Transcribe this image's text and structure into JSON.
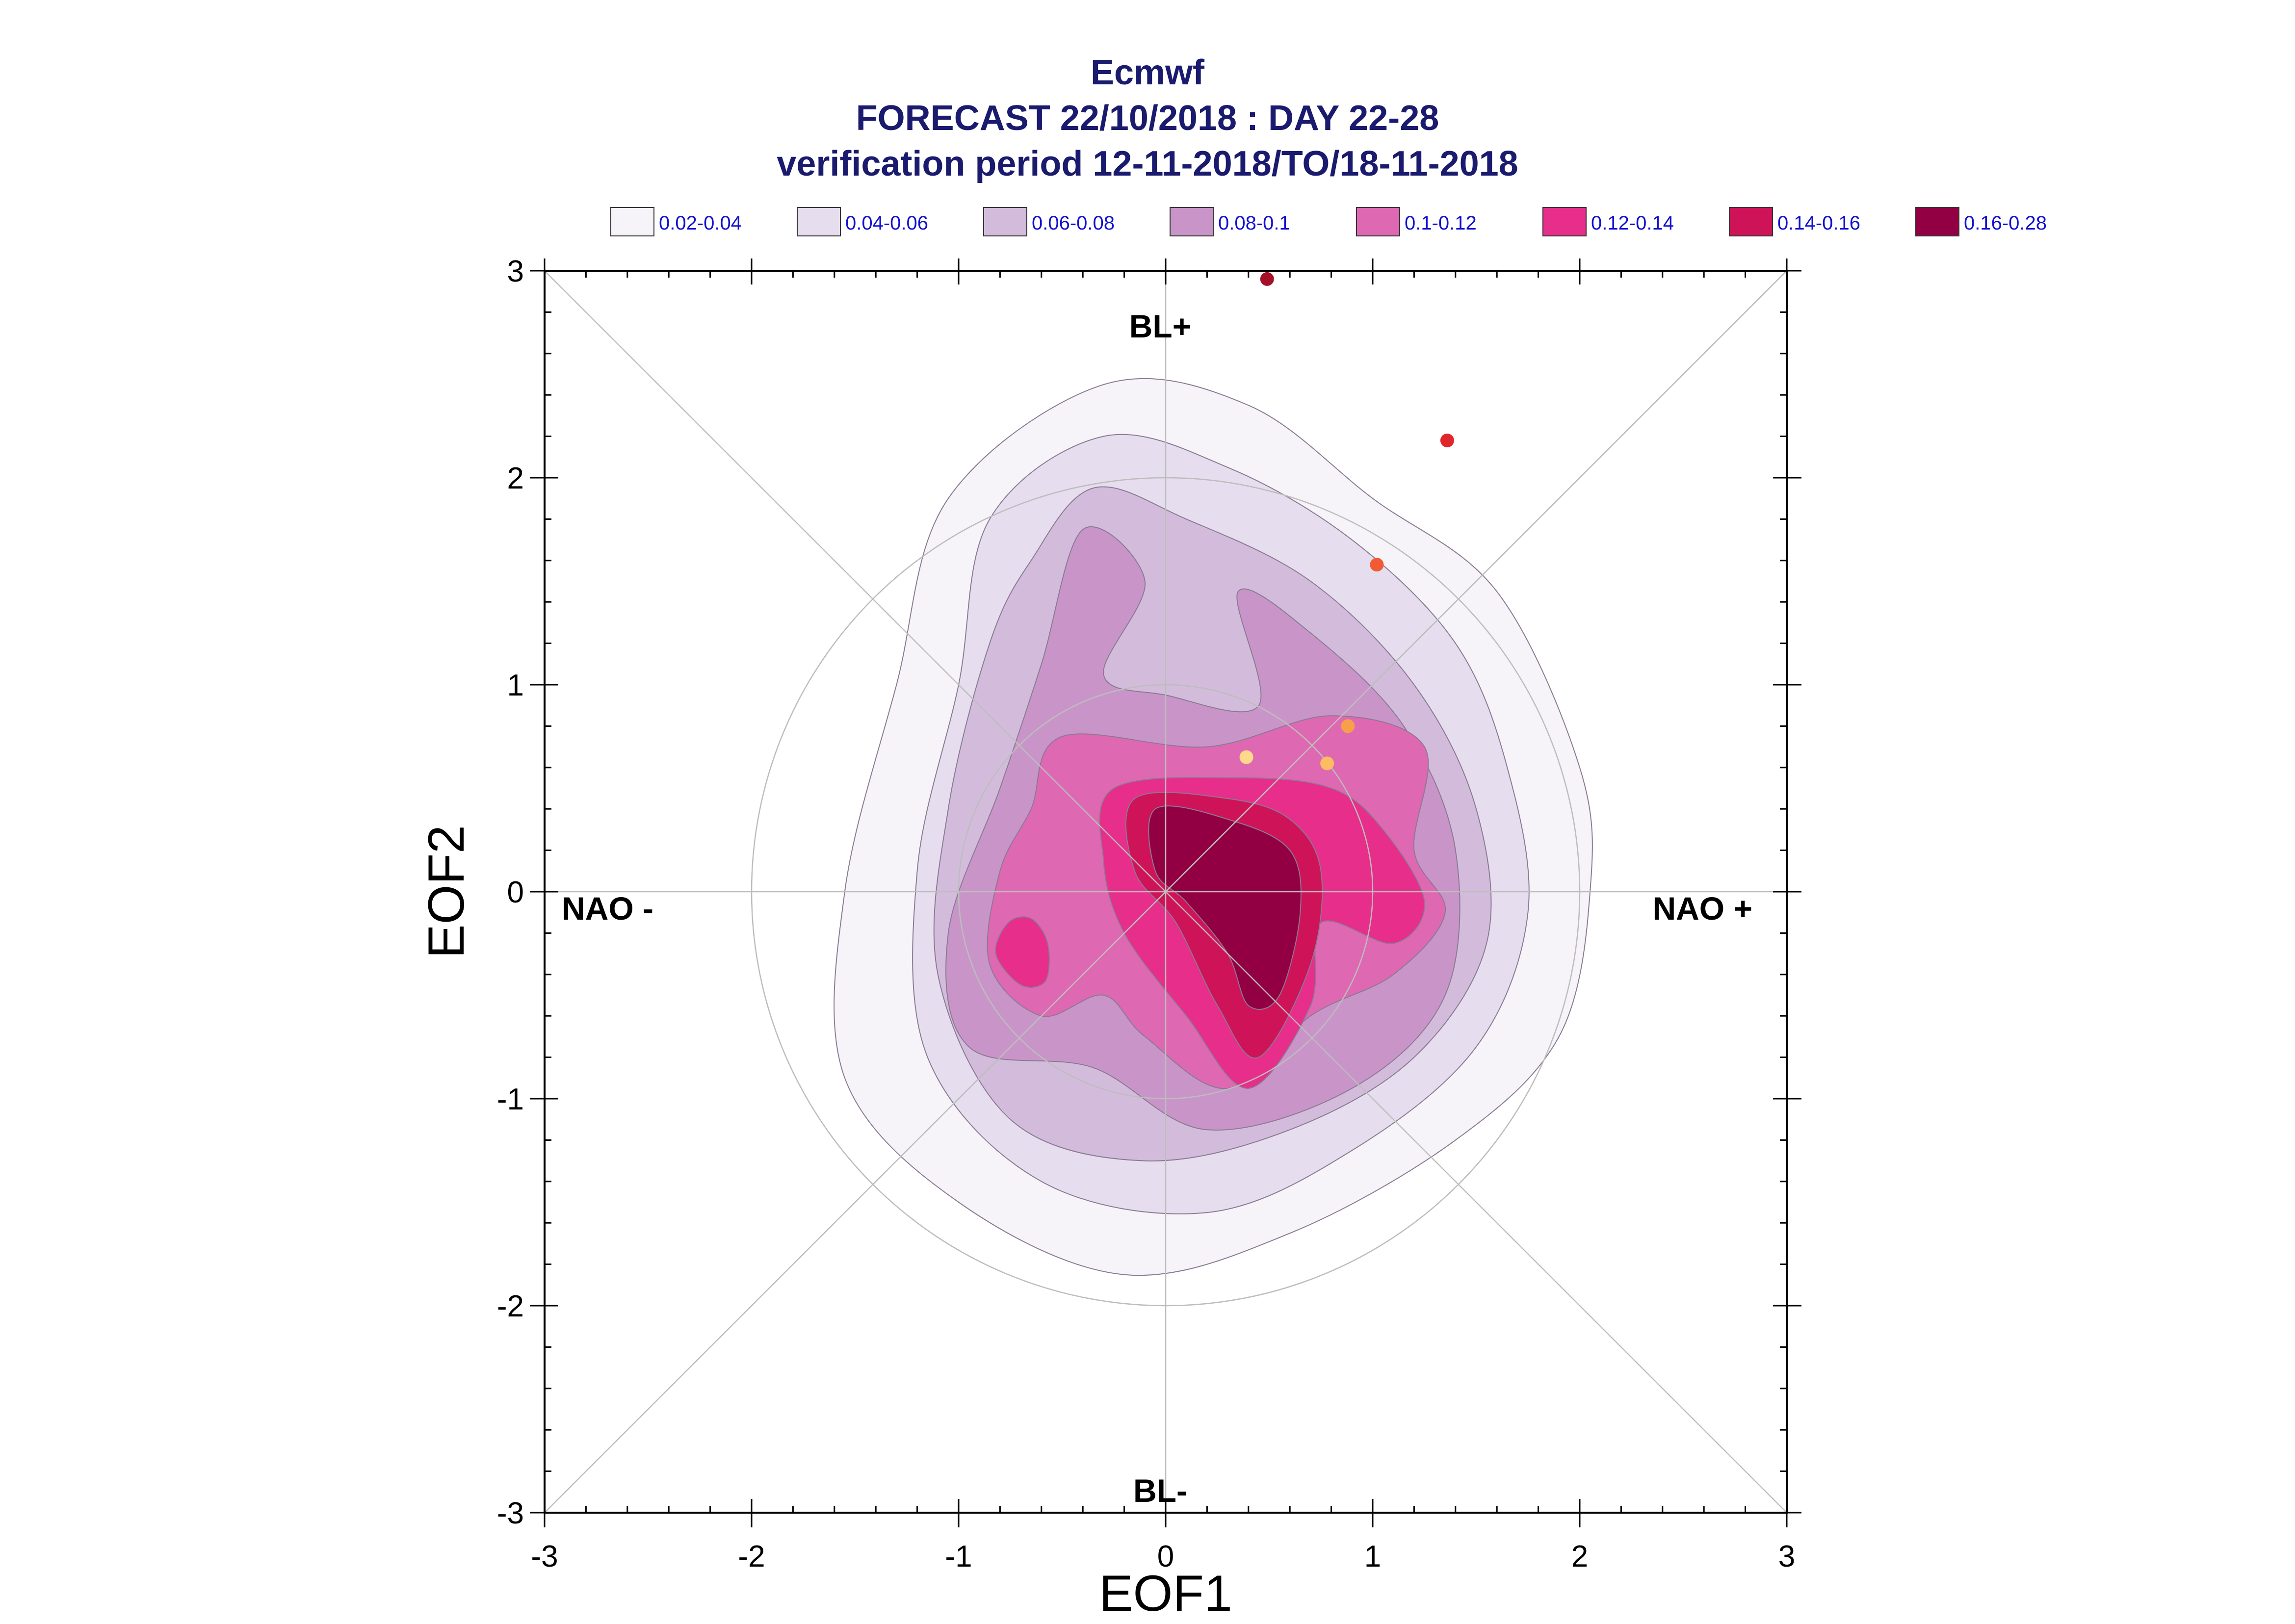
{
  "chart_data": {
    "type": "contour",
    "title": [
      "Ecmwf",
      "FORECAST 22/10/2018 : DAY 22-28",
      "verification period 12-11-2018/TO/18-11-2018"
    ],
    "xlabel": "EOF1",
    "ylabel": "EOF2",
    "xlim": [
      -3,
      3
    ],
    "ylim": [
      -3,
      3
    ],
    "xticks": [
      "-3",
      "-2",
      "-1",
      "0",
      "1",
      "2",
      "3"
    ],
    "yticks": [
      "-3",
      "-2",
      "-1",
      "0",
      "1",
      "2",
      "3"
    ],
    "regime_labels": {
      "top": "BL+",
      "bottom": "BL-",
      "left": "NAO -",
      "right": "NAO +"
    },
    "legend": [
      {
        "label": "0.02-0.04",
        "color": "#f6f3f9"
      },
      {
        "label": "0.04-0.06",
        "color": "#e6ddee"
      },
      {
        "label": "0.06-0.08",
        "color": "#d3bcdb"
      },
      {
        "label": "0.08-0.1",
        "color": "#c995c9"
      },
      {
        "label": "0.1-0.12",
        "color": "#df68b2"
      },
      {
        "label": "0.12-0.14",
        "color": "#e62e8a"
      },
      {
        "label": "0.14-0.16",
        "color": "#cf1358"
      },
      {
        "label": "0.16-0.28",
        "color": "#920043"
      }
    ],
    "density_levels": [
      {
        "range": "0.02-0.04",
        "points": [
          [
            -0.3,
            2.45
          ],
          [
            0.4,
            2.35
          ],
          [
            1.0,
            1.9
          ],
          [
            1.6,
            1.45
          ],
          [
            2.0,
            0.6
          ],
          [
            2.05,
            0.0
          ],
          [
            1.9,
            -0.7
          ],
          [
            1.4,
            -1.2
          ],
          [
            0.6,
            -1.65
          ],
          [
            -0.2,
            -1.85
          ],
          [
            -1.0,
            -1.5
          ],
          [
            -1.55,
            -0.9
          ],
          [
            -1.55,
            0.0
          ],
          [
            -1.3,
            1.0
          ],
          [
            -1.05,
            1.9
          ]
        ]
      },
      {
        "range": "0.04-0.06",
        "points": [
          [
            -0.3,
            2.2
          ],
          [
            0.3,
            2.05
          ],
          [
            0.9,
            1.7
          ],
          [
            1.4,
            1.2
          ],
          [
            1.65,
            0.6
          ],
          [
            1.75,
            -0.1
          ],
          [
            1.5,
            -0.75
          ],
          [
            0.9,
            -1.25
          ],
          [
            0.2,
            -1.55
          ],
          [
            -0.6,
            -1.4
          ],
          [
            -1.15,
            -0.8
          ],
          [
            -1.2,
            0.1
          ],
          [
            -1.0,
            1.0
          ],
          [
            -0.85,
            1.8
          ]
        ]
      },
      {
        "range": "0.06-0.08",
        "points": [
          [
            -0.35,
            1.95
          ],
          [
            0.1,
            1.8
          ],
          [
            0.7,
            1.5
          ],
          [
            1.2,
            1.0
          ],
          [
            1.5,
            0.4
          ],
          [
            1.55,
            -0.25
          ],
          [
            1.2,
            -0.8
          ],
          [
            0.6,
            -1.15
          ],
          [
            -0.1,
            -1.3
          ],
          [
            -0.75,
            -1.1
          ],
          [
            -1.1,
            -0.4
          ],
          [
            -1.05,
            0.4
          ],
          [
            -0.85,
            1.2
          ],
          [
            -0.65,
            1.6
          ]
        ]
      },
      {
        "range": "0.08-0.1",
        "points": [
          [
            -0.4,
            1.75
          ],
          [
            -0.1,
            1.5
          ],
          [
            -0.3,
            1.05
          ],
          [
            0.0,
            0.95
          ],
          [
            0.45,
            0.9
          ],
          [
            0.35,
            1.45
          ],
          [
            0.7,
            1.25
          ],
          [
            1.15,
            0.8
          ],
          [
            1.4,
            0.2
          ],
          [
            1.35,
            -0.5
          ],
          [
            0.9,
            -0.95
          ],
          [
            0.2,
            -1.15
          ],
          [
            -0.35,
            -0.85
          ],
          [
            -0.95,
            -0.75
          ],
          [
            -1.05,
            -0.2
          ],
          [
            -0.8,
            0.5
          ],
          [
            -0.6,
            1.1
          ]
        ]
      },
      {
        "range": "0.1-0.12",
        "points": [
          [
            -0.5,
            0.75
          ],
          [
            0.2,
            0.7
          ],
          [
            0.8,
            0.85
          ],
          [
            1.25,
            0.7
          ],
          [
            1.2,
            0.2
          ],
          [
            1.35,
            -0.1
          ],
          [
            1.1,
            -0.4
          ],
          [
            0.7,
            -0.6
          ],
          [
            0.3,
            -0.95
          ],
          [
            -0.1,
            -0.7
          ],
          [
            -0.3,
            -0.5
          ],
          [
            -0.6,
            -0.6
          ],
          [
            -0.85,
            -0.35
          ],
          [
            -0.8,
            0.1
          ],
          [
            -0.65,
            0.4
          ]
        ]
      },
      {
        "range": "0.12-0.14",
        "points": [
          [
            -0.25,
            0.5
          ],
          [
            0.35,
            0.55
          ],
          [
            0.8,
            0.5
          ],
          [
            1.05,
            0.3
          ],
          [
            1.25,
            -0.05
          ],
          [
            1.1,
            -0.25
          ],
          [
            0.75,
            -0.15
          ],
          [
            0.7,
            -0.55
          ],
          [
            0.4,
            -0.95
          ],
          [
            0.1,
            -0.6
          ],
          [
            -0.2,
            -0.2
          ],
          [
            -0.3,
            0.15
          ]
        ]
      },
      {
        "range": "0.12-0.14",
        "points": [
          [
            -0.65,
            -0.13
          ],
          [
            -0.57,
            -0.25
          ],
          [
            -0.58,
            -0.43
          ],
          [
            -0.7,
            -0.45
          ],
          [
            -0.82,
            -0.3
          ],
          [
            -0.76,
            -0.15
          ]
        ]
      },
      {
        "range": "0.14-0.16",
        "points": [
          [
            -0.15,
            0.45
          ],
          [
            0.3,
            0.45
          ],
          [
            0.6,
            0.35
          ],
          [
            0.75,
            0.1
          ],
          [
            0.7,
            -0.35
          ],
          [
            0.45,
            -0.8
          ],
          [
            0.25,
            -0.55
          ],
          [
            0.05,
            -0.15
          ],
          [
            -0.15,
            0.1
          ]
        ]
      },
      {
        "range": "0.16-0.28",
        "points": [
          [
            -0.05,
            0.4
          ],
          [
            0.3,
            0.35
          ],
          [
            0.6,
            0.2
          ],
          [
            0.65,
            -0.1
          ],
          [
            0.55,
            -0.5
          ],
          [
            0.4,
            -0.55
          ],
          [
            0.3,
            -0.3
          ],
          [
            0.1,
            -0.05
          ],
          [
            -0.05,
            0.1
          ]
        ]
      }
    ],
    "verification_points": [
      {
        "x": 0.49,
        "y": 2.96,
        "color": "#a50f28"
      },
      {
        "x": 1.36,
        "y": 2.18,
        "color": "#e0262a"
      },
      {
        "x": 1.02,
        "y": 1.58,
        "color": "#f05a34"
      },
      {
        "x": 0.88,
        "y": 0.8,
        "color": "#f6a04a"
      },
      {
        "x": 0.78,
        "y": 0.62,
        "color": "#fbbc62"
      },
      {
        "x": 0.39,
        "y": 0.65,
        "color": "#fed98a"
      }
    ]
  }
}
